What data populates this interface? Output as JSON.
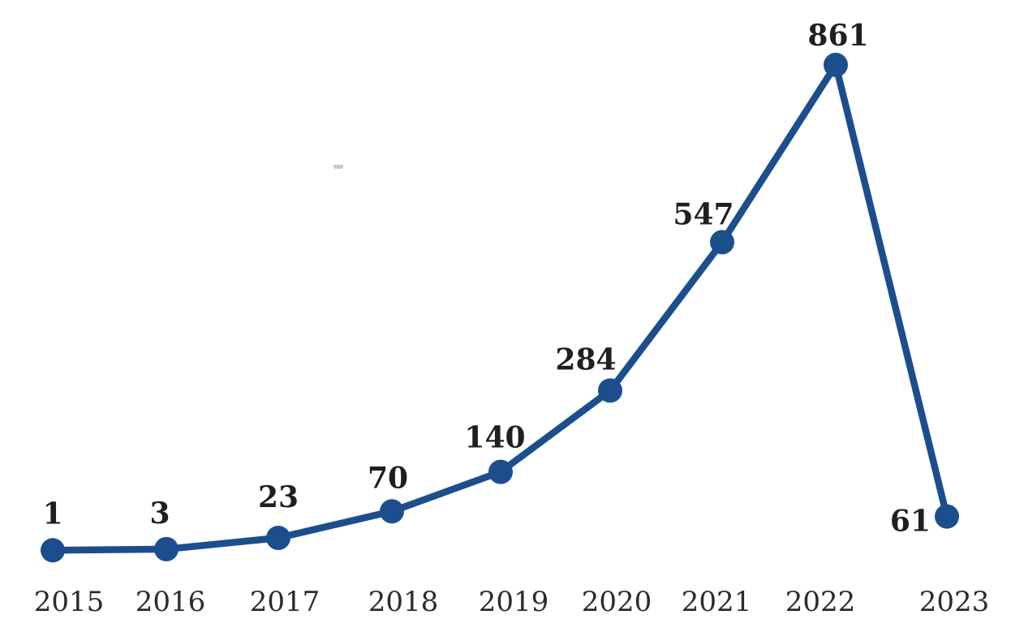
{
  "page": {
    "background_color": "#ffffff"
  },
  "chart_data": {
    "type": "line",
    "title": "",
    "xlabel": "",
    "ylabel": "",
    "categories": [
      "2015",
      "2016",
      "2017",
      "2018",
      "2019",
      "2020",
      "2021",
      "2022",
      "2023"
    ],
    "values": [
      1,
      3,
      23,
      70,
      140,
      284,
      547,
      861,
      61
    ],
    "data_labels": [
      "1",
      "3",
      "23",
      "70",
      "140",
      "284",
      "547",
      "861",
      "61"
    ],
    "data_label_positions": [
      "above",
      "above",
      "above",
      "above",
      "above",
      "above",
      "above",
      "above",
      "left"
    ],
    "ylim": [
      0,
      900
    ],
    "grid": false,
    "axes_visible": false,
    "legend_position": "none",
    "marker_style": "circle",
    "colors": {
      "line": "#1c4e8e",
      "marker": "#1c4e8e",
      "data_label": "#1f1f1f",
      "tick_label": "#2b2b2b",
      "background": "#ffffff"
    }
  }
}
